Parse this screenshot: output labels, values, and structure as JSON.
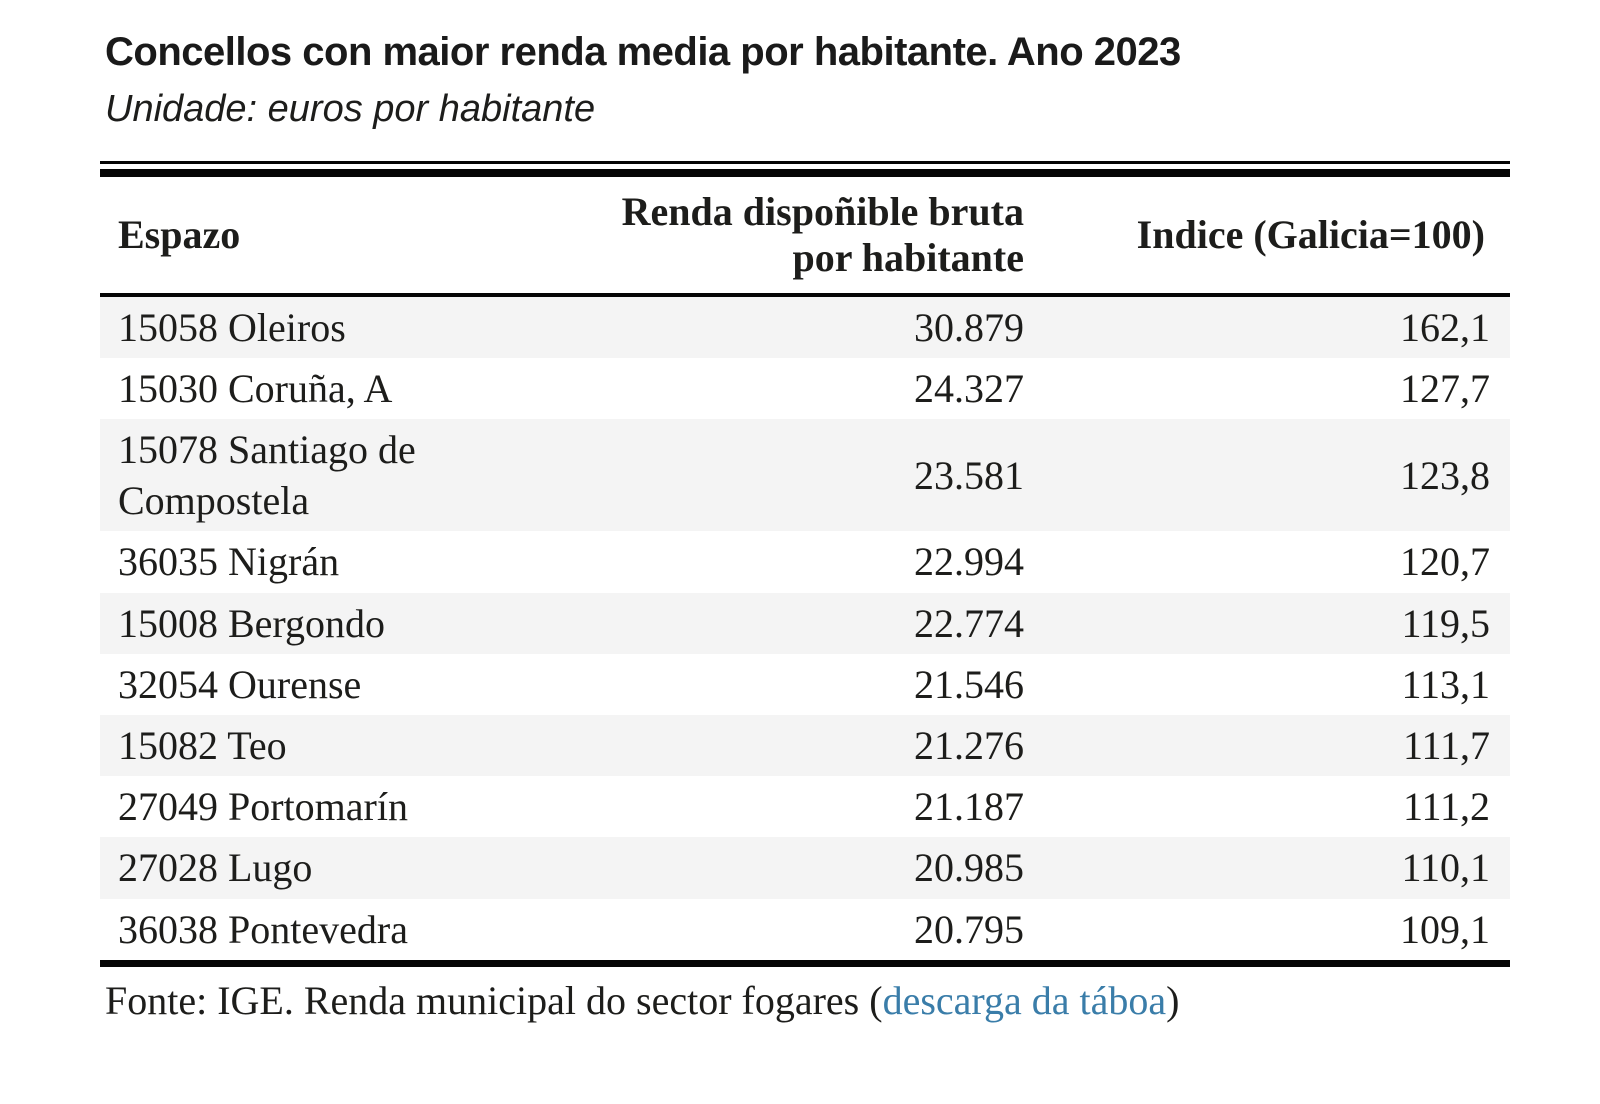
{
  "colors": {
    "text_dark": "#1d1d1b",
    "link_blue": "#3a7da9",
    "row_stripe_gray": "#f4f4f4",
    "rule_black": "#050505"
  },
  "header": {
    "title": "Concellos con maior renda media por habitante. Ano 2023",
    "subtitle": "Unidade: euros por habitante"
  },
  "table": {
    "columns": {
      "espazo": {
        "label": "Espazo"
      },
      "renda": {
        "label": "Renda dispoñible bruta por habitante",
        "line1": "Renda dispoñible bruta",
        "line2": "por habitante"
      },
      "indice": {
        "label": "Indice (Galicia=100)"
      }
    },
    "rows": [
      {
        "espazo": "15058 Oleiros",
        "renda": "30.879",
        "indice": "162,1"
      },
      {
        "espazo": "15030 Coruña, A",
        "renda": "24.327",
        "indice": "127,7"
      },
      {
        "espazo": "15078 Santiago de Compostela",
        "renda": "23.581",
        "indice": "123,8"
      },
      {
        "espazo": "36035 Nigrán",
        "renda": "22.994",
        "indice": "120,7"
      },
      {
        "espazo": "15008 Bergondo",
        "renda": "22.774",
        "indice": "119,5"
      },
      {
        "espazo": "32054 Ourense",
        "renda": "21.546",
        "indice": "113,1"
      },
      {
        "espazo": "15082 Teo",
        "renda": "21.276",
        "indice": "111,7"
      },
      {
        "espazo": "27049 Portomarín",
        "renda": "21.187",
        "indice": "111,2"
      },
      {
        "espazo": "27028 Lugo",
        "renda": "20.985",
        "indice": "110,1"
      },
      {
        "espazo": "36038 Pontevedra",
        "renda": "20.795",
        "indice": "109,1"
      }
    ]
  },
  "footer": {
    "text_before_link": "Fonte: IGE. Renda municipal do sector fogares (",
    "link_text": "descarga da táboa",
    "text_after_link": ")"
  },
  "chart_data": {
    "type": "table",
    "title": "Concellos con maior renda media por habitante. Ano 2023",
    "unit": "euros por habitante",
    "columns": [
      "Espazo",
      "Renda dispoñible bruta por habitante",
      "Indice (Galicia=100)"
    ],
    "rows": [
      [
        "15058 Oleiros",
        30879,
        162.1
      ],
      [
        "15030 Coruña, A",
        24327,
        127.7
      ],
      [
        "15078 Santiago de Compostela",
        23581,
        123.8
      ],
      [
        "36035 Nigrán",
        22994,
        120.7
      ],
      [
        "15008 Bergondo",
        22774,
        119.5
      ],
      [
        "32054 Ourense",
        21546,
        113.1
      ],
      [
        "15082 Teo",
        21276,
        111.7
      ],
      [
        "27049 Portomarín",
        21187,
        111.2
      ],
      [
        "27028 Lugo",
        20985,
        110.1
      ],
      [
        "36038 Pontevedra",
        20795,
        109.1
      ]
    ],
    "source": "Fonte: IGE. Renda municipal do sector fogares"
  }
}
